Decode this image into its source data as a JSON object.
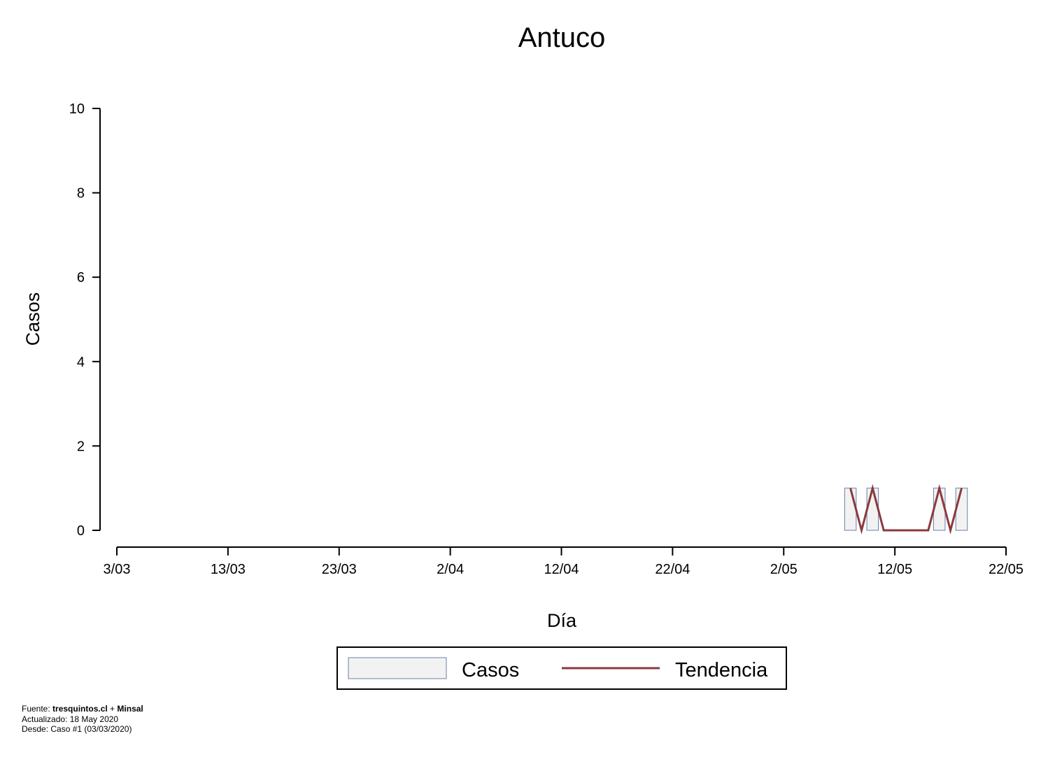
{
  "chart_data": {
    "type": "bar",
    "title": "Antuco",
    "xlabel": "Día",
    "ylabel": "Casos",
    "ylim": [
      0,
      10
    ],
    "yticks": [
      "0",
      "2",
      "4",
      "6",
      "8",
      "10"
    ],
    "xlim": [
      "2020-03-03",
      "2020-05-22"
    ],
    "xticks": [
      "3/03",
      "13/03",
      "23/03",
      "2/04",
      "12/04",
      "22/04",
      "2/05",
      "12/05",
      "22/05"
    ],
    "x": [
      "2020-05-08",
      "2020-05-09",
      "2020-05-10",
      "2020-05-11",
      "2020-05-12",
      "2020-05-13",
      "2020-05-14",
      "2020-05-15",
      "2020-05-16",
      "2020-05-17",
      "2020-05-18"
    ],
    "series": [
      {
        "name": "Casos",
        "values": [
          1,
          0,
          1,
          0,
          0,
          0,
          0,
          0,
          1,
          0,
          1
        ]
      },
      {
        "name": "Tendencia",
        "values": [
          1,
          0,
          1,
          0,
          0,
          0,
          0,
          0,
          1,
          0,
          1
        ]
      }
    ],
    "colors": {
      "bar_fill": "#f2f2f2",
      "bar_stroke": "#6b7fa8",
      "line": "#8b3a3f"
    },
    "legend": {
      "position": "bottom",
      "items": [
        "Casos",
        "Tendencia"
      ]
    },
    "grid": false
  },
  "footer": {
    "line1_prefix": "Fuente: ",
    "line1_source1": "tresquintos.cl",
    "line1_sep": " + ",
    "line1_source2": "Minsal",
    "line2": "Actualizado: 18 May 2020",
    "line3": "Desde: Caso #1  (03/03/2020)"
  }
}
